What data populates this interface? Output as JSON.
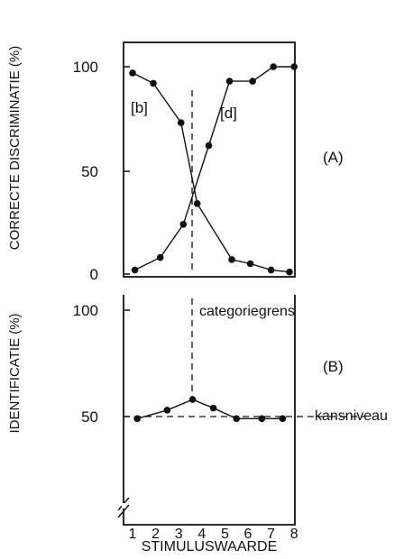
{
  "chart_data": [
    {
      "type": "line",
      "panel_label": "(A)",
      "ylabel": "CORRECTE DISCRIMINATIE (%)",
      "y_ticks": [
        "100",
        "50",
        "0"
      ],
      "ylim": [
        0,
        100
      ],
      "x": [
        1,
        2,
        3,
        4,
        5,
        6,
        7,
        8
      ],
      "series": [
        {
          "name": "[b]",
          "x": [
            1.0,
            1.9,
            3.1,
            3.8,
            5.3,
            6.1,
            7.0,
            7.8
          ],
          "values": [
            97,
            92,
            73,
            34,
            7,
            5,
            2,
            1
          ]
        },
        {
          "name": "[d]",
          "x": [
            1.1,
            2.2,
            3.2,
            4.3,
            5.2,
            6.2,
            7.1,
            8.0
          ],
          "values": [
            2,
            8,
            24,
            62,
            93,
            93,
            100,
            100
          ]
        }
      ],
      "category_boundary_x": 3.6
    },
    {
      "type": "line",
      "panel_label": "(B)",
      "ylabel": "IDENTIFICATIE (%)",
      "y_ticks": [
        "100",
        "50"
      ],
      "ylim": [
        0,
        100
      ],
      "x": [
        1,
        2,
        3,
        4,
        5,
        6,
        7,
        8
      ],
      "xlabel": "STIMULUSWAARDE",
      "x_tick_labels": [
        "1",
        "2",
        "3",
        "4",
        "5",
        "6",
        "7",
        "8"
      ],
      "series": [
        {
          "x": [
            1.2,
            2.5,
            3.6,
            4.5,
            5.5,
            6.6,
            7.5
          ],
          "values": [
            49,
            53,
            58,
            54,
            49,
            49,
            49
          ]
        }
      ],
      "chance_level": 50,
      "chance_label": "kansniveau",
      "boundary_label": "categoriegrens",
      "category_boundary_x": 3.6
    }
  ]
}
